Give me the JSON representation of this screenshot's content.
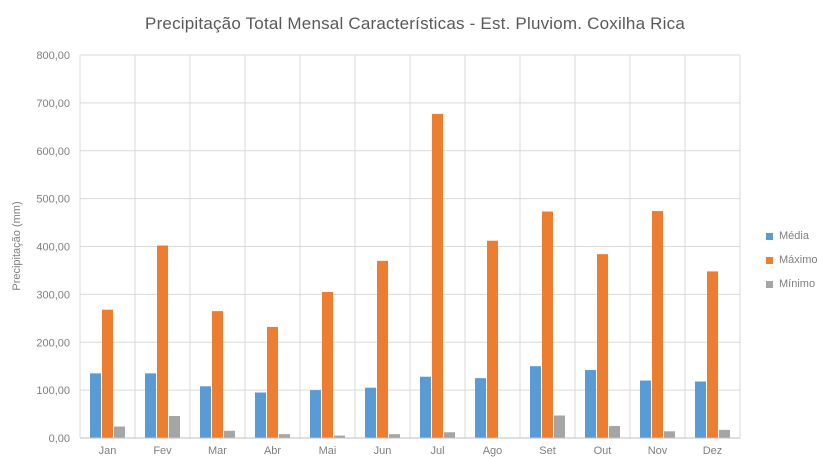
{
  "chart_data": {
    "type": "bar",
    "title": "Precipitação Total Mensal Características - Est. Pluviom. Coxilha Rica",
    "xlabel": "",
    "ylabel": "Precipitação (mm)",
    "ylim": [
      0,
      800
    ],
    "yticks": [
      "0,00",
      "100,00",
      "200,00",
      "300,00",
      "400,00",
      "500,00",
      "600,00",
      "700,00",
      "800,00"
    ],
    "grid": true,
    "legend_position": "right",
    "categories": [
      "Jan",
      "Fev",
      "Mar",
      "Abr",
      "Mai",
      "Jun",
      "Jul",
      "Ago",
      "Set",
      "Out",
      "Nov",
      "Dez"
    ],
    "series": [
      {
        "name": "Média",
        "color": "#5b9bd5",
        "values": [
          135,
          135,
          108,
          95,
          100,
          105,
          128,
          125,
          150,
          142,
          120,
          118
        ]
      },
      {
        "name": "Máximo",
        "color": "#ed7d31",
        "values": [
          268,
          402,
          265,
          232,
          305,
          370,
          677,
          412,
          473,
          384,
          474,
          348
        ]
      },
      {
        "name": "Mínimo",
        "color": "#a5a5a5",
        "values": [
          24,
          46,
          15,
          8,
          5,
          8,
          12,
          0,
          47,
          25,
          14,
          17
        ]
      }
    ]
  }
}
